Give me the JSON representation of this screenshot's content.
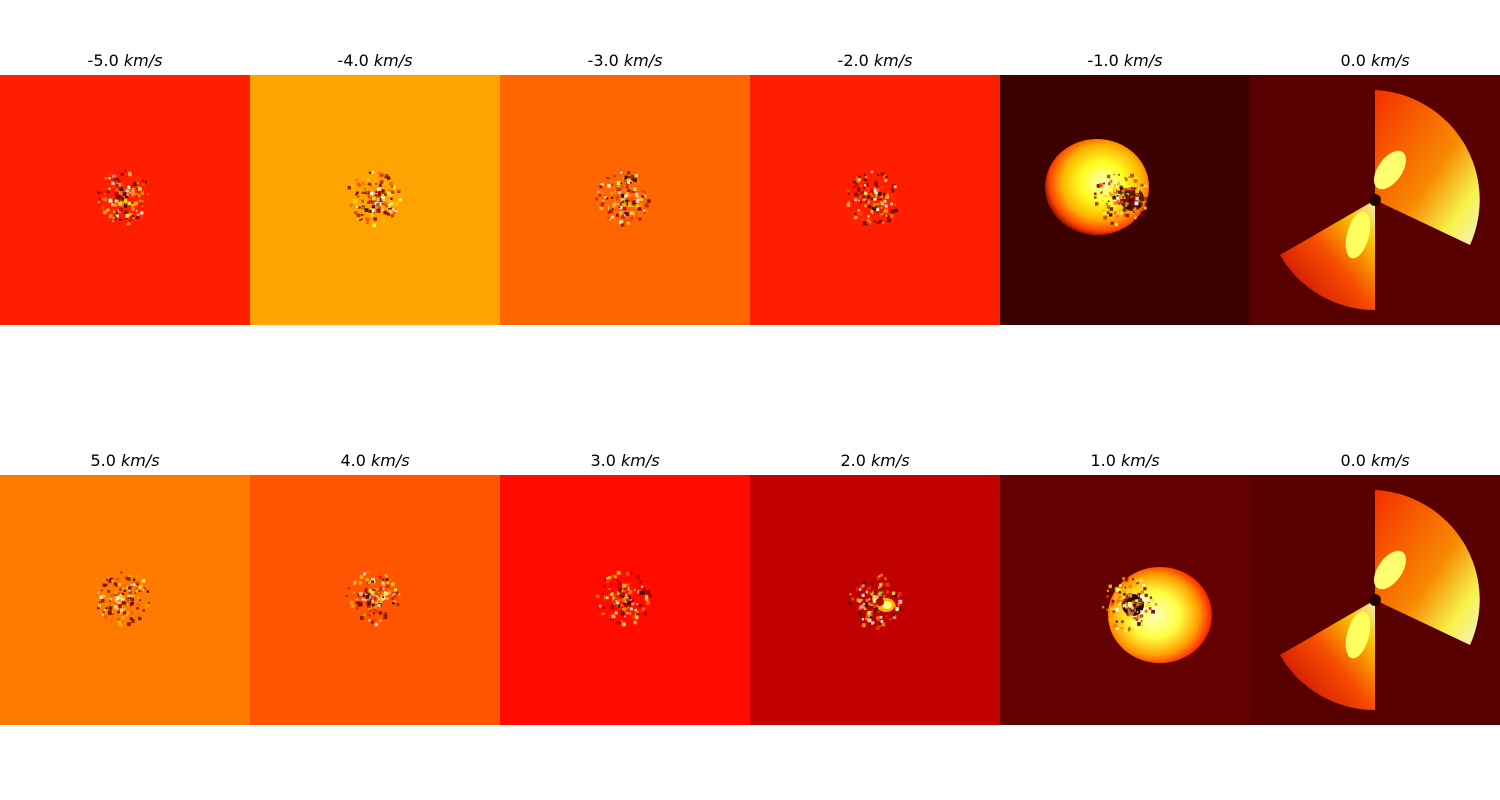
{
  "figure": {
    "unit": "km/s",
    "rows": [
      {
        "panels": [
          {
            "velocity": "-5.0",
            "background": "#ff1e00",
            "feature": "speckle"
          },
          {
            "velocity": "-4.0",
            "background": "#ffa300",
            "feature": "speckle"
          },
          {
            "velocity": "-3.0",
            "background": "#ff6500",
            "feature": "speckle"
          },
          {
            "velocity": "-2.0",
            "background": "#ff1e00",
            "feature": "speckle"
          },
          {
            "velocity": "-1.0",
            "background": "#3c0000",
            "feature": "blob-left"
          },
          {
            "velocity": "0.0",
            "background": "#580000",
            "feature": "bowtie"
          }
        ]
      },
      {
        "panels": [
          {
            "velocity": "5.0",
            "background": "#ff7a00",
            "feature": "speckle"
          },
          {
            "velocity": "4.0",
            "background": "#ff5500",
            "feature": "speckle"
          },
          {
            "velocity": "3.0",
            "background": "#ff0b00",
            "feature": "speckle"
          },
          {
            "velocity": "2.0",
            "background": "#c10000",
            "feature": "small-arc"
          },
          {
            "velocity": "1.0",
            "background": "#640000",
            "feature": "ring-right"
          },
          {
            "velocity": "0.0",
            "background": "#580000",
            "feature": "bowtie"
          }
        ]
      }
    ]
  }
}
